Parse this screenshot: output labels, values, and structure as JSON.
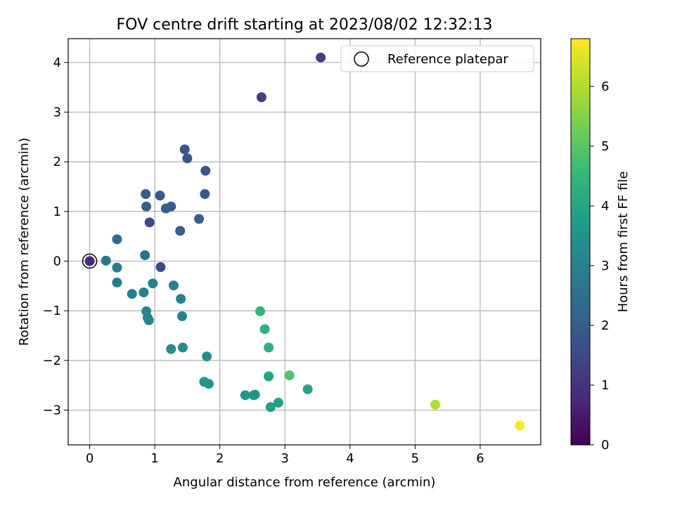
{
  "chart_data": {
    "type": "scatter",
    "title": "FOV centre drift starting at 2023/08/02 12:32:13",
    "xlabel": "Angular distance from reference (arcmin)",
    "ylabel": "Rotation from reference (arcmin)",
    "xlim": [
      -0.33,
      6.93
    ],
    "ylim": [
      -3.7,
      4.48
    ],
    "xticks": [
      0,
      1,
      2,
      3,
      4,
      5,
      6
    ],
    "xtick_labels": [
      "0",
      "1",
      "2",
      "3",
      "4",
      "5",
      "6"
    ],
    "yticks": [
      -3,
      -2,
      -1,
      0,
      1,
      2,
      3,
      4
    ],
    "ytick_labels": [
      "−3",
      "−2",
      "−1",
      "0",
      "1",
      "2",
      "3",
      "4"
    ],
    "grid": true,
    "legend": {
      "position": "top-right",
      "entries": [
        "Reference platepar"
      ]
    },
    "reference_point": {
      "x": 0,
      "y": 0
    },
    "colorbar": {
      "label": "Hours from first FF file",
      "range": [
        0,
        6.8
      ],
      "ticks": [
        0,
        1,
        2,
        3,
        4,
        5,
        6
      ],
      "tick_labels": [
        "0",
        "1",
        "2",
        "3",
        "4",
        "5",
        "6"
      ],
      "colormap": "viridis",
      "colormap_stops": [
        "#440154",
        "#482878",
        "#3e4989",
        "#31688e",
        "#26828e",
        "#1f9e89",
        "#35b779",
        "#6ece58",
        "#b5de2b",
        "#fde725"
      ]
    },
    "points": [
      {
        "x": 0.0,
        "y": 0.0,
        "c": 0.8
      },
      {
        "x": 3.55,
        "y": 4.1,
        "c": 1.3
      },
      {
        "x": 2.64,
        "y": 3.3,
        "c": 1.3
      },
      {
        "x": 1.09,
        "y": -0.12,
        "c": 1.5
      },
      {
        "x": 0.92,
        "y": 0.78,
        "c": 1.5
      },
      {
        "x": 1.46,
        "y": 2.25,
        "c": 1.8
      },
      {
        "x": 1.5,
        "y": 2.07,
        "c": 1.8
      },
      {
        "x": 1.78,
        "y": 1.82,
        "c": 1.8
      },
      {
        "x": 0.86,
        "y": 1.35,
        "c": 1.9
      },
      {
        "x": 1.08,
        "y": 1.32,
        "c": 1.9
      },
      {
        "x": 1.77,
        "y": 1.35,
        "c": 1.9
      },
      {
        "x": 0.87,
        "y": 1.1,
        "c": 2.0
      },
      {
        "x": 1.25,
        "y": 1.1,
        "c": 2.0
      },
      {
        "x": 1.17,
        "y": 1.06,
        "c": 2.0
      },
      {
        "x": 1.68,
        "y": 0.85,
        "c": 2.0
      },
      {
        "x": 1.39,
        "y": 0.61,
        "c": 2.1
      },
      {
        "x": 0.42,
        "y": 0.44,
        "c": 2.3
      },
      {
        "x": 0.85,
        "y": 0.12,
        "c": 2.4
      },
      {
        "x": 0.25,
        "y": 0.01,
        "c": 2.6
      },
      {
        "x": 0.42,
        "y": -0.13,
        "c": 2.7
      },
      {
        "x": 0.42,
        "y": -0.43,
        "c": 2.8
      },
      {
        "x": 0.97,
        "y": -0.45,
        "c": 2.9
      },
      {
        "x": 1.29,
        "y": -0.49,
        "c": 2.9
      },
      {
        "x": 0.65,
        "y": -0.66,
        "c": 3.0
      },
      {
        "x": 0.83,
        "y": -0.63,
        "c": 3.0
      },
      {
        "x": 1.4,
        "y": -0.76,
        "c": 3.0
      },
      {
        "x": 0.87,
        "y": -1.01,
        "c": 3.1
      },
      {
        "x": 0.89,
        "y": -1.14,
        "c": 3.1
      },
      {
        "x": 0.91,
        "y": -1.19,
        "c": 3.1
      },
      {
        "x": 1.42,
        "y": -1.11,
        "c": 3.1
      },
      {
        "x": 1.25,
        "y": -1.77,
        "c": 3.3
      },
      {
        "x": 1.43,
        "y": -1.74,
        "c": 3.3
      },
      {
        "x": 1.8,
        "y": -1.92,
        "c": 3.4
      },
      {
        "x": 1.76,
        "y": -2.43,
        "c": 3.5
      },
      {
        "x": 1.83,
        "y": -2.47,
        "c": 3.5
      },
      {
        "x": 2.39,
        "y": -2.7,
        "c": 3.6
      },
      {
        "x": 2.52,
        "y": -2.7,
        "c": 3.6
      },
      {
        "x": 2.54,
        "y": -2.69,
        "c": 3.6
      },
      {
        "x": 2.78,
        "y": -2.94,
        "c": 3.8
      },
      {
        "x": 2.9,
        "y": -2.85,
        "c": 3.8
      },
      {
        "x": 2.75,
        "y": -2.32,
        "c": 4.0
      },
      {
        "x": 3.35,
        "y": -2.58,
        "c": 3.9
      },
      {
        "x": 2.62,
        "y": -1.01,
        "c": 4.4
      },
      {
        "x": 2.69,
        "y": -1.37,
        "c": 4.3
      },
      {
        "x": 2.75,
        "y": -1.74,
        "c": 4.3
      },
      {
        "x": 3.07,
        "y": -2.3,
        "c": 4.9
      },
      {
        "x": 5.31,
        "y": -2.89,
        "c": 6.0
      },
      {
        "x": 6.61,
        "y": -3.31,
        "c": 6.8
      }
    ]
  }
}
